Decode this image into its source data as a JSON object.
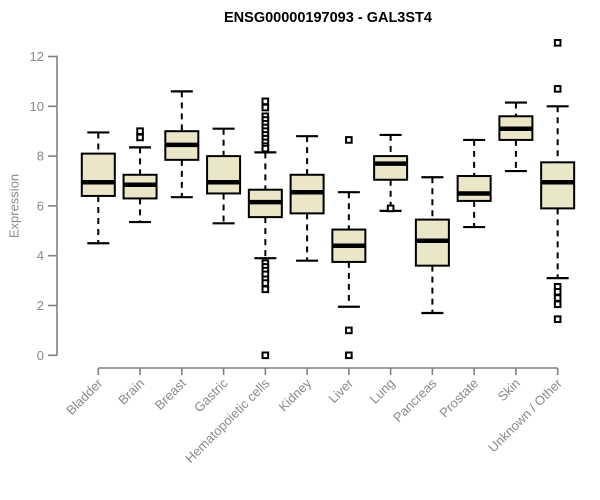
{
  "chart_data": {
    "type": "boxplot",
    "title": "ENSG00000197093 - GAL3ST4",
    "ylabel": "Expression",
    "ylim": [
      0,
      12
    ],
    "yticks": [
      0,
      2,
      4,
      6,
      8,
      10,
      12
    ],
    "grid": false,
    "legend": false,
    "x_label_rotation": 45,
    "categories": [
      "Bladder",
      "Brain",
      "Breast",
      "Gastric",
      "Hematopoietic cells",
      "Kidney",
      "Liver",
      "Lung",
      "Pancreas",
      "Prostate",
      "Skin",
      "Unknown / Other"
    ],
    "boxes": [
      {
        "category": "Bladder",
        "low": 4.5,
        "q1": 6.4,
        "median": 6.95,
        "q3": 8.1,
        "high": 8.95,
        "outliers": []
      },
      {
        "category": "Brain",
        "low": 5.35,
        "q1": 6.3,
        "median": 6.85,
        "q3": 7.25,
        "high": 8.35,
        "outliers": [
          9.0,
          8.75
        ]
      },
      {
        "category": "Breast",
        "low": 6.35,
        "q1": 7.85,
        "median": 8.45,
        "q3": 9.0,
        "high": 10.6,
        "outliers": []
      },
      {
        "category": "Gastric",
        "low": 5.3,
        "q1": 6.5,
        "median": 6.95,
        "q3": 8.0,
        "high": 9.1,
        "outliers": []
      },
      {
        "category": "Hematopoietic cells",
        "low": 3.9,
        "q1": 5.55,
        "median": 6.15,
        "q3": 6.65,
        "high": 8.15,
        "outliers": [
          10.2,
          9.95,
          9.6,
          9.45,
          9.3,
          9.15,
          9.0,
          8.85,
          8.7,
          8.55,
          8.4,
          8.3,
          3.7,
          3.55,
          3.4,
          3.25,
          3.05,
          2.9,
          2.65,
          0.0
        ]
      },
      {
        "category": "Kidney",
        "low": 3.8,
        "q1": 5.7,
        "median": 6.55,
        "q3": 7.25,
        "high": 8.8,
        "outliers": []
      },
      {
        "category": "Liver",
        "low": 1.95,
        "q1": 3.75,
        "median": 4.4,
        "q3": 5.05,
        "high": 6.55,
        "outliers": [
          8.65,
          1.0,
          0.0
        ]
      },
      {
        "category": "Lung",
        "low": 5.8,
        "q1": 7.05,
        "median": 7.7,
        "q3": 8.0,
        "high": 8.85,
        "outliers": [
          5.9
        ]
      },
      {
        "category": "Pancreas",
        "low": 1.7,
        "q1": 3.6,
        "median": 4.6,
        "q3": 5.45,
        "high": 7.15,
        "outliers": []
      },
      {
        "category": "Prostate",
        "low": 5.15,
        "q1": 6.2,
        "median": 6.5,
        "q3": 7.2,
        "high": 8.65,
        "outliers": []
      },
      {
        "category": "Skin",
        "low": 7.4,
        "q1": 8.65,
        "median": 9.1,
        "q3": 9.6,
        "high": 10.15,
        "outliers": []
      },
      {
        "category": "Unknown / Other",
        "low": 3.1,
        "q1": 5.9,
        "median": 6.95,
        "q3": 7.75,
        "high": 10.0,
        "outliers": [
          12.55,
          10.7,
          2.75,
          2.55,
          2.3,
          2.05,
          1.45
        ]
      }
    ],
    "colors": {
      "box_fill": "#ECE6C9",
      "box_border": "#000000",
      "median": "#000000",
      "whisker": "#000000",
      "outlier_stroke": "#000000",
      "outlier_fill": "#ffffff",
      "axis_line": "#808080",
      "tick_text": "#8a8a8a",
      "title_text": "#000000"
    }
  }
}
